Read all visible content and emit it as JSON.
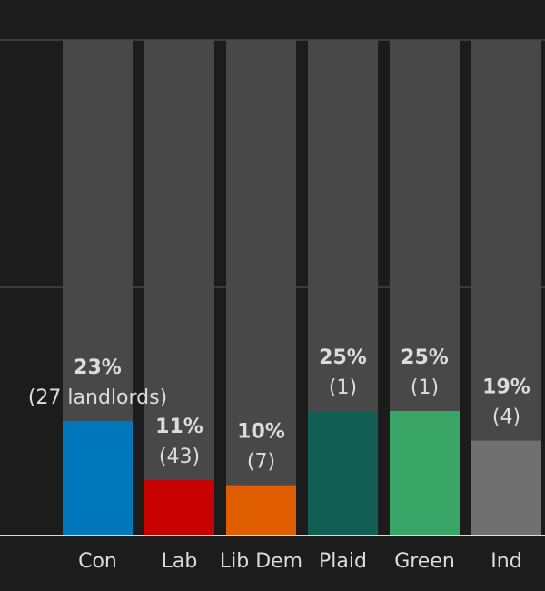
{
  "chart_data": {
    "type": "bar",
    "title": "",
    "xlabel": "",
    "ylabel": "",
    "ylim": [
      0,
      100
    ],
    "grid": true,
    "categories": [
      "Con",
      "Lab",
      "Lib Dem",
      "Plaid",
      "Green",
      "Ind"
    ],
    "values": [
      23,
      11,
      10,
      25,
      25,
      19
    ],
    "value_labels": [
      "23%",
      "11%",
      "10%",
      "25%",
      "25%",
      "19%"
    ],
    "count_labels": [
      "(27 landlords)",
      "(43)",
      "(7)",
      "(1)",
      "(1)",
      "(4)"
    ],
    "colors": [
      "#0077bb",
      "#c70000",
      "#e05e00",
      "#135e54",
      "#39a566",
      "#707070"
    ],
    "track_color": "#484848"
  }
}
